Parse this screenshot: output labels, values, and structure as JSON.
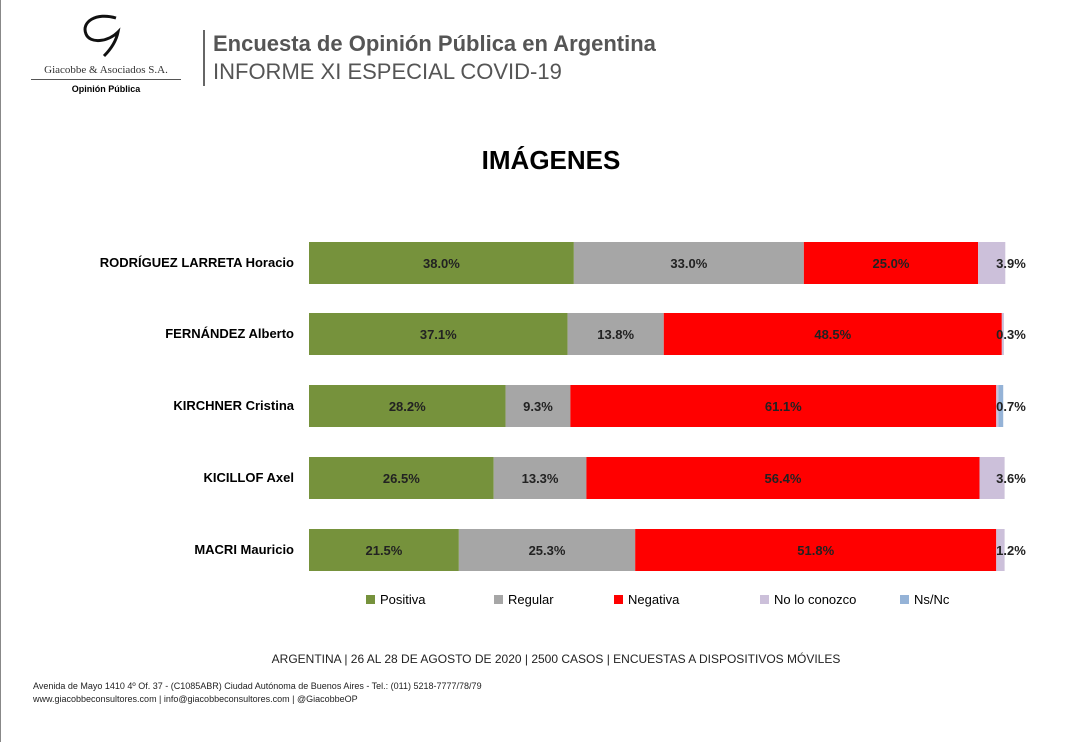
{
  "header": {
    "brand": "Giacobbe & Asociados S.A.",
    "brand_sub": "Opinión Pública",
    "title": "Encuesta de Opinión Pública en Argentina",
    "subtitle": "INFORME XI ESPECIAL COVID-19"
  },
  "footer": {
    "survey": "ARGENTINA | 26 AL 28 DE AGOSTO DE 2020 | 2500 CASOS | ENCUESTAS A DISPOSITIVOS MÓVILES",
    "address": "Avenida de Mayo 1410 4º Of. 37 - (C1085ABR) Ciudad Autónoma de Buenos Aires - Tel.: (011) 5218-7777/78/79",
    "contact": "www.giacobbeconsultores.com | info@giacobbeconsultores.com | @GiacobbeOP"
  },
  "chart_data": {
    "type": "bar",
    "stacked": true,
    "orientation": "horizontal",
    "title": "IMÁGENES",
    "xlim": [
      0,
      100
    ],
    "legend_position": "bottom",
    "categories": [
      "RODRÍGUEZ LARRETA Horacio",
      "FERNÁNDEZ Alberto",
      "KIRCHNER Cristina",
      "KICILLOF Axel",
      "MACRI Mauricio"
    ],
    "series": [
      {
        "name": "Positiva",
        "color": "#76923c",
        "values": [
          38.0,
          37.1,
          28.2,
          26.5,
          21.5
        ]
      },
      {
        "name": "Regular",
        "color": "#a6a6a6",
        "values": [
          33.0,
          13.8,
          9.3,
          13.3,
          25.3
        ]
      },
      {
        "name": "Negativa",
        "color": "#ff0000",
        "values": [
          25.0,
          48.5,
          61.1,
          56.4,
          51.8
        ]
      },
      {
        "name": "No lo conozco",
        "color": "#ccc0da",
        "values": [
          3.9,
          0.3,
          0.3,
          3.6,
          1.2
        ]
      },
      {
        "name": "Ns/Nc",
        "color": "#95b3d7",
        "values": [
          0,
          0,
          0.7,
          0,
          0
        ]
      }
    ],
    "data_labels": [
      [
        "38.0%",
        "33.0%",
        "25.0%",
        "3.9%",
        ""
      ],
      [
        "37.1%",
        "13.8%",
        "48.5%",
        "0.3%",
        ""
      ],
      [
        "28.2%",
        "9.3%",
        "61.1%",
        "",
        "0.7%"
      ],
      [
        "26.5%",
        "13.3%",
        "56.4%",
        "3.6%",
        ""
      ],
      [
        "21.5%",
        "25.3%",
        "51.8%",
        "1.2%",
        ""
      ]
    ]
  }
}
